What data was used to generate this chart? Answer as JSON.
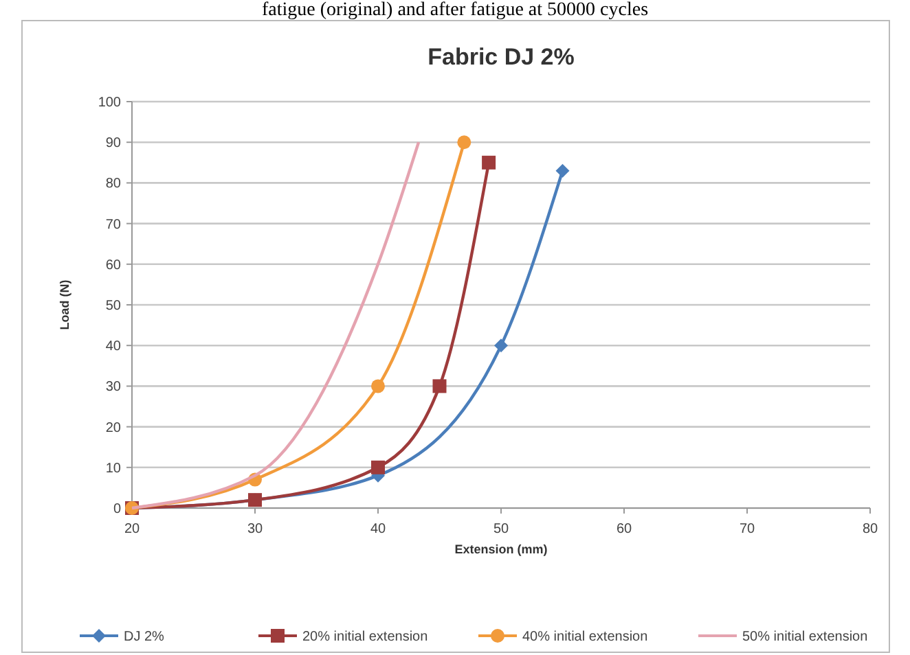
{
  "chart_data": {
    "type": "line",
    "title": "Fabric DJ 2%",
    "xlabel": "Extension (mm)",
    "ylabel": "Load (N)",
    "annotations": [
      "fatigue (original) and after fatigue at 50000 cycles"
    ],
    "xlim": [
      20,
      80
    ],
    "xticks": [
      20,
      30,
      40,
      50,
      60,
      70,
      80
    ],
    "ylim": [
      0,
      100
    ],
    "yticks": [
      0,
      10,
      20,
      30,
      40,
      50,
      60,
      70,
      80,
      90,
      100
    ],
    "grid": "y",
    "legend": "bottom",
    "series": [
      {
        "name": "DJ 2%",
        "color": "#4a7ebb",
        "marker": "diamond",
        "x": [
          20,
          30,
          40,
          50,
          55
        ],
        "values": [
          0,
          2,
          8,
          40,
          83
        ]
      },
      {
        "name": "20% initial extension",
        "color": "#9e3b3b",
        "marker": "square",
        "x": [
          20,
          30,
          40,
          45,
          49
        ],
        "values": [
          0,
          2,
          10,
          30,
          85
        ]
      },
      {
        "name": "40% initial extension",
        "color": "#f29b3b",
        "marker": "circle",
        "x": [
          20,
          30,
          40,
          47
        ],
        "values": [
          0,
          7,
          30,
          90
        ]
      },
      {
        "name": "50% initial extension",
        "color": "#e5a3b0",
        "marker": "none",
        "x": [
          20,
          30,
          40,
          43.3
        ],
        "values": [
          0,
          8,
          60,
          90
        ]
      }
    ]
  }
}
